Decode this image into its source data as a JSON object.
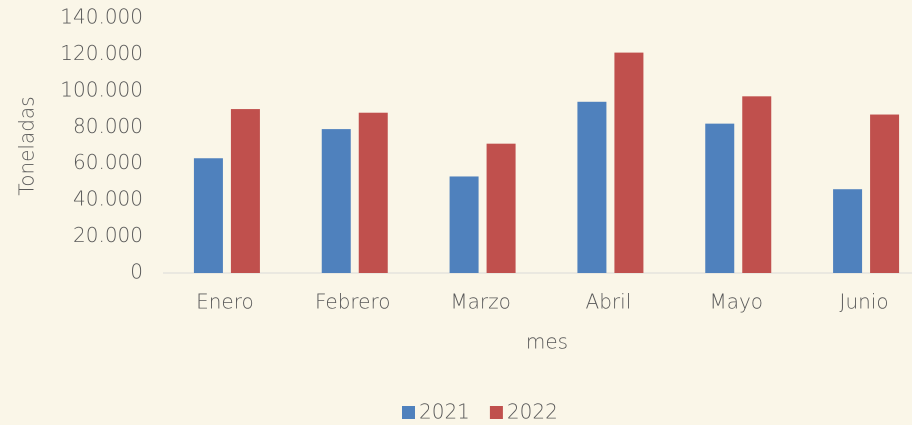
{
  "chart_data": {
    "type": "bar",
    "x_label": "mes",
    "y_label": "Toneladas",
    "categories": [
      "Enero",
      "Febrero",
      "Marzo",
      "Abril",
      "Mayo",
      "Junio"
    ],
    "series": [
      {
        "name": "2021",
        "color": "#4f81bd",
        "values": [
          63000,
          79000,
          53000,
          94000,
          82000,
          46000
        ]
      },
      {
        "name": "2022",
        "color": "#c0504d",
        "values": [
          90000,
          88000,
          71000,
          121000,
          97000,
          87000
        ]
      }
    ],
    "ylim": [
      0,
      140000
    ],
    "yticks": [
      0,
      {
        "value": 20000,
        "label": "20.000"
      },
      {
        "value": 40000,
        "label": "40.000"
      },
      {
        "value": 60000,
        "label": "60.000"
      },
      {
        "value": 80000,
        "label": "80.000"
      },
      {
        "value": 100000,
        "label": "100.000"
      },
      {
        "value": 120000,
        "label": "120.000"
      },
      {
        "value": 140000,
        "label": "140.000"
      }
    ],
    "grid": false,
    "legend": "bottom"
  }
}
